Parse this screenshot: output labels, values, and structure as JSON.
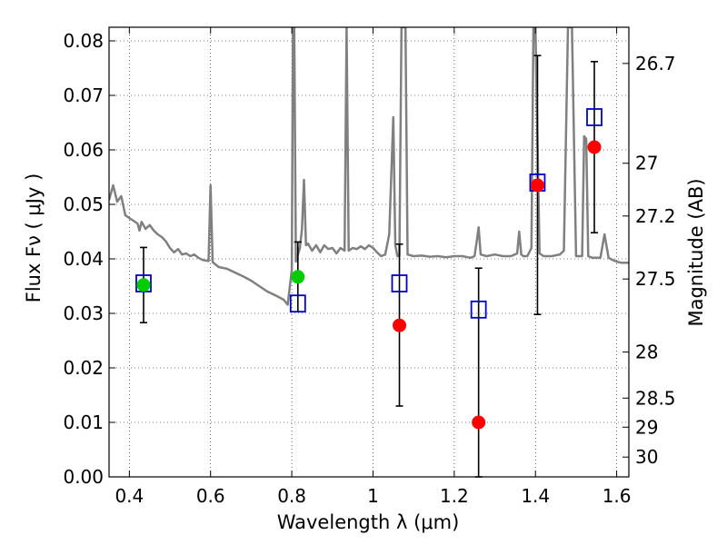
{
  "chart_data": {
    "type": "scatter",
    "title": "",
    "xlabel": "Wavelength  λ (μm)",
    "ylabel": "Flux  Fν  ( μJy )",
    "ylabel_right": "Magnitude (AB)",
    "xlim": [
      0.35,
      1.63
    ],
    "ylim": [
      0.0,
      0.0825
    ],
    "grid": true,
    "x_ticks": [
      0.4,
      0.6,
      0.8,
      1.0,
      1.2,
      1.4,
      1.6
    ],
    "x_tick_labels": [
      "0.4",
      "0.6",
      "0.8",
      "1",
      "1.2",
      "1.4",
      "1.6"
    ],
    "y_ticks": [
      0.0,
      0.01,
      0.02,
      0.03,
      0.04,
      0.05,
      0.06,
      0.07,
      0.08
    ],
    "y_tick_labels": [
      "0.00",
      "0.01",
      "0.02",
      "0.03",
      "0.04",
      "0.05",
      "0.06",
      "0.07",
      "0.08"
    ],
    "right_ticks": [
      {
        "label": "26.7",
        "mag": 26.7
      },
      {
        "label": "27",
        "mag": 27.0
      },
      {
        "label": "27.2",
        "mag": 27.2
      },
      {
        "label": "27.5",
        "mag": 27.5
      },
      {
        "label": "28",
        "mag": 28.0
      },
      {
        "label": "28.5",
        "mag": 28.5
      },
      {
        "label": "29",
        "mag": 29.0
      },
      {
        "label": "30",
        "mag": 30.0
      }
    ],
    "series": [
      {
        "marker": "line",
        "color": "#808080",
        "points": [
          [
            0.35,
            0.0508
          ],
          [
            0.36,
            0.0535
          ],
          [
            0.37,
            0.0505
          ],
          [
            0.38,
            0.0515
          ],
          [
            0.39,
            0.048
          ],
          [
            0.4,
            0.0475
          ],
          [
            0.41,
            0.047
          ],
          [
            0.42,
            0.0465
          ],
          [
            0.425,
            0.0452
          ],
          [
            0.43,
            0.0468
          ],
          [
            0.44,
            0.0455
          ],
          [
            0.45,
            0.0462
          ],
          [
            0.46,
            0.0452
          ],
          [
            0.47,
            0.0445
          ],
          [
            0.48,
            0.044
          ],
          [
            0.49,
            0.0432
          ],
          [
            0.5,
            0.042
          ],
          [
            0.51,
            0.0412
          ],
          [
            0.52,
            0.0418
          ],
          [
            0.53,
            0.0408
          ],
          [
            0.54,
            0.041
          ],
          [
            0.55,
            0.0405
          ],
          [
            0.56,
            0.0408
          ],
          [
            0.57,
            0.0402
          ],
          [
            0.58,
            0.0398
          ],
          [
            0.595,
            0.0396
          ],
          [
            0.6,
            0.0535
          ],
          [
            0.605,
            0.0394
          ],
          [
            0.62,
            0.0385
          ],
          [
            0.64,
            0.0382
          ],
          [
            0.66,
            0.0375
          ],
          [
            0.68,
            0.0368
          ],
          [
            0.7,
            0.036
          ],
          [
            0.72,
            0.035
          ],
          [
            0.74,
            0.034
          ],
          [
            0.76,
            0.0333
          ],
          [
            0.78,
            0.0325
          ],
          [
            0.79,
            0.0316
          ],
          [
            0.8,
            0.038
          ],
          [
            0.803,
            0.0825
          ],
          [
            0.806,
            0.0825
          ],
          [
            0.81,
            0.0395
          ],
          [
            0.82,
            0.042
          ],
          [
            0.825,
            0.0455
          ],
          [
            0.83,
            0.0545
          ],
          [
            0.835,
            0.0425
          ],
          [
            0.84,
            0.0428
          ],
          [
            0.85,
            0.0415
          ],
          [
            0.86,
            0.0425
          ],
          [
            0.87,
            0.0412
          ],
          [
            0.88,
            0.0425
          ],
          [
            0.89,
            0.0418
          ],
          [
            0.9,
            0.042
          ],
          [
            0.91,
            0.041
          ],
          [
            0.92,
            0.042
          ],
          [
            0.93,
            0.0415
          ],
          [
            0.935,
            0.0825
          ],
          [
            0.94,
            0.0415
          ],
          [
            0.95,
            0.042
          ],
          [
            0.96,
            0.0418
          ],
          [
            0.97,
            0.0423
          ],
          [
            0.98,
            0.0418
          ],
          [
            0.99,
            0.0425
          ],
          [
            1.0,
            0.042
          ],
          [
            1.01,
            0.0412
          ],
          [
            1.02,
            0.0405
          ],
          [
            1.03,
            0.0408
          ],
          [
            1.04,
            0.0445
          ],
          [
            1.05,
            0.066
          ],
          [
            1.055,
            0.0425
          ],
          [
            1.06,
            0.0405
          ],
          [
            1.065,
            0.0405
          ],
          [
            1.07,
            0.0825
          ],
          [
            1.08,
            0.0825
          ],
          [
            1.085,
            0.0408
          ],
          [
            1.1,
            0.0405
          ],
          [
            1.12,
            0.0406
          ],
          [
            1.14,
            0.0404
          ],
          [
            1.16,
            0.0405
          ],
          [
            1.18,
            0.0403
          ],
          [
            1.2,
            0.0405
          ],
          [
            1.22,
            0.0405
          ],
          [
            1.24,
            0.0402
          ],
          [
            1.25,
            0.0405
          ],
          [
            1.255,
            0.043
          ],
          [
            1.26,
            0.0458
          ],
          [
            1.265,
            0.0408
          ],
          [
            1.28,
            0.0405
          ],
          [
            1.3,
            0.0408
          ],
          [
            1.32,
            0.0405
          ],
          [
            1.34,
            0.0405
          ],
          [
            1.355,
            0.041
          ],
          [
            1.36,
            0.045
          ],
          [
            1.365,
            0.0408
          ],
          [
            1.37,
            0.0405
          ],
          [
            1.38,
            0.0405
          ],
          [
            1.39,
            0.042
          ],
          [
            1.395,
            0.0825
          ],
          [
            1.4,
            0.0825
          ],
          [
            1.41,
            0.041
          ],
          [
            1.42,
            0.0405
          ],
          [
            1.44,
            0.0405
          ],
          [
            1.46,
            0.0408
          ],
          [
            1.47,
            0.0415
          ],
          [
            1.48,
            0.0825
          ],
          [
            1.49,
            0.0825
          ],
          [
            1.5,
            0.0405
          ],
          [
            1.51,
            0.0405
          ],
          [
            1.515,
            0.0405
          ],
          [
            1.52,
            0.0625
          ],
          [
            1.525,
            0.062
          ],
          [
            1.53,
            0.0405
          ],
          [
            1.54,
            0.0402
          ],
          [
            1.55,
            0.0402
          ],
          [
            1.56,
            0.0402
          ],
          [
            1.57,
            0.0445
          ],
          [
            1.58,
            0.0402
          ],
          [
            1.59,
            0.0398
          ],
          [
            1.6,
            0.0395
          ],
          [
            1.61,
            0.0393
          ],
          [
            1.63,
            0.0393
          ]
        ]
      },
      {
        "marker": "open-square",
        "color": "#0000cc",
        "points": [
          [
            0.435,
            0.0355
          ],
          [
            0.815,
            0.0318
          ],
          [
            1.065,
            0.0355
          ],
          [
            1.26,
            0.0307
          ],
          [
            1.405,
            0.054
          ],
          [
            1.545,
            0.066
          ]
        ]
      },
      {
        "marker": "filled-circle",
        "color": "#00cc00",
        "points": [
          [
            0.435,
            0.0352
          ],
          [
            0.815,
            0.0367
          ]
        ]
      },
      {
        "marker": "filled-circle",
        "color": "#ff0000",
        "points": [
          [
            1.065,
            0.0278
          ],
          [
            1.26,
            0.01
          ],
          [
            1.405,
            0.0535
          ],
          [
            1.545,
            0.0605
          ]
        ]
      },
      {
        "marker": "errorbar",
        "color": "#000000",
        "bars": [
          {
            "x": 0.435,
            "low": 0.0283,
            "high": 0.0421
          },
          {
            "x": 0.815,
            "low": 0.0303,
            "high": 0.0431
          },
          {
            "x": 1.065,
            "low": 0.013,
            "high": 0.0427
          },
          {
            "x": 1.26,
            "low": 0.0,
            "high": 0.0383
          },
          {
            "x": 1.405,
            "low": 0.0298,
            "high": 0.0773
          },
          {
            "x": 1.545,
            "low": 0.0448,
            "high": 0.0762
          }
        ]
      }
    ]
  }
}
